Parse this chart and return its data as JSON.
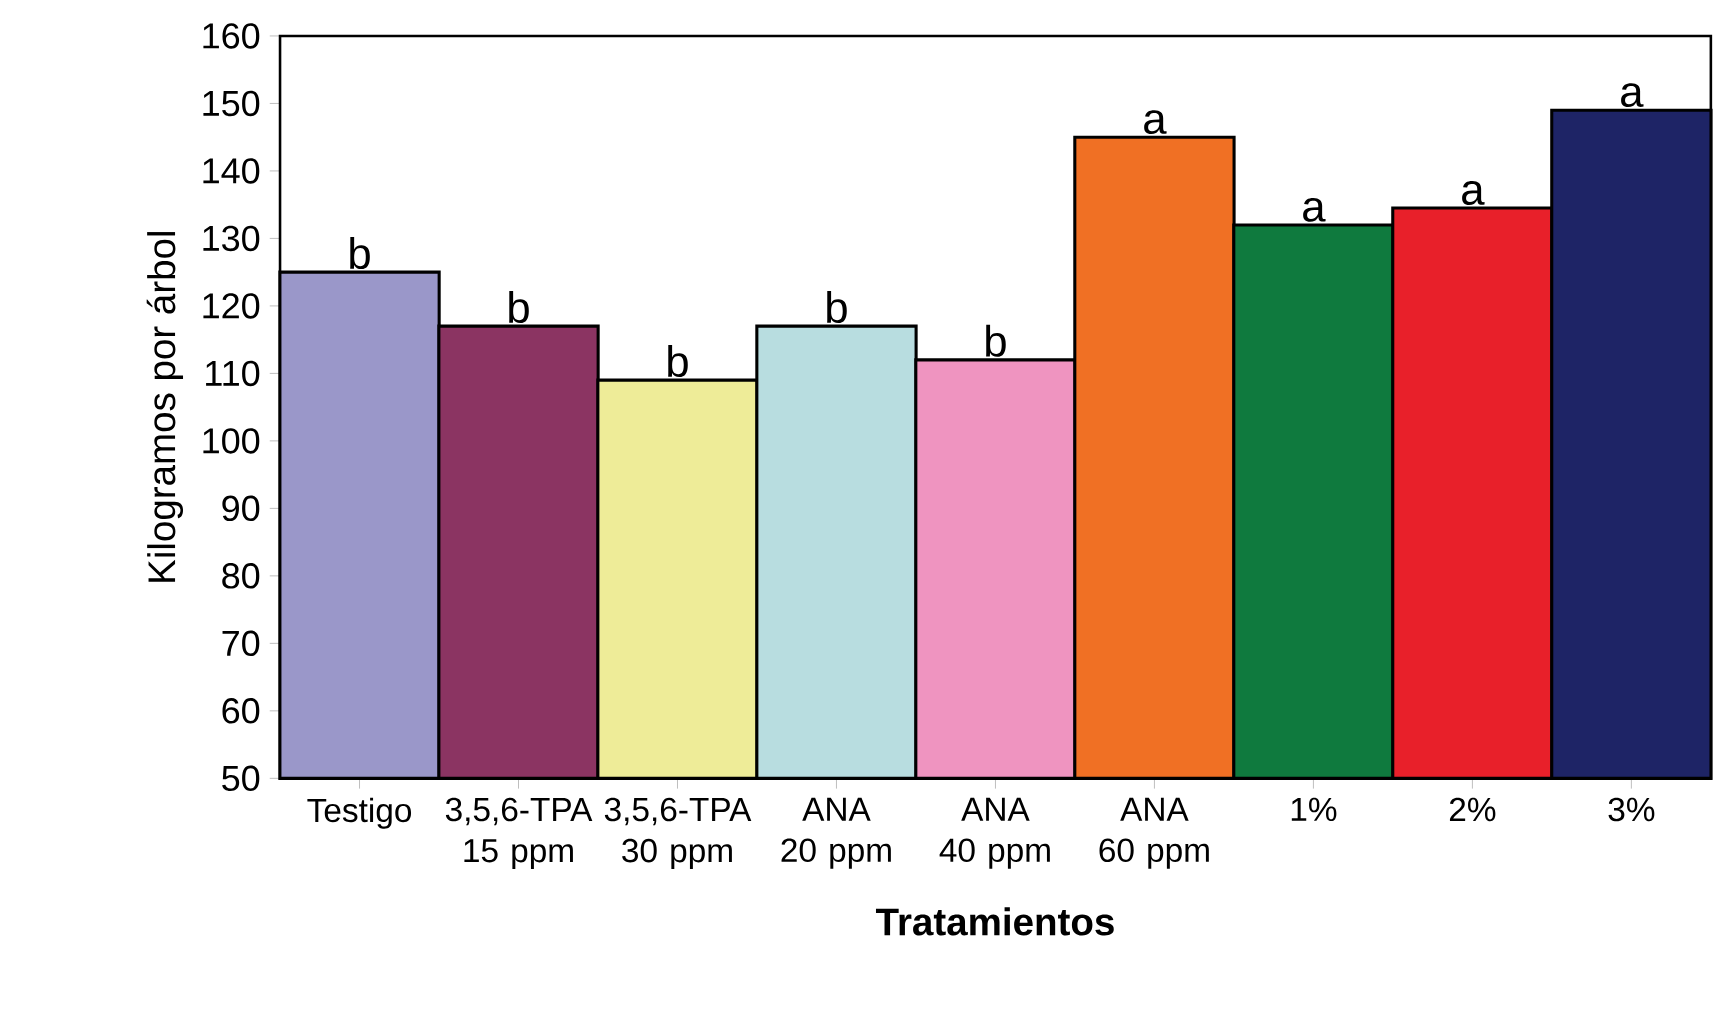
{
  "chart_data": {
    "type": "bar",
    "xlabel": "Tratamientos",
    "ylabel": "Kilogramos  por árbol",
    "categories": [
      "Testigo",
      "3,5,6-TPA 15 ppm",
      "3,5,6-TPA 30 ppm",
      "ANA  20 ppm",
      "ANA  40 ppm",
      "ANA 60 ppm",
      "1%",
      "2%",
      "3%"
    ],
    "values": [
      125,
      117,
      109,
      117,
      112,
      145,
      132,
      134.5,
      149
    ],
    "colors": [
      "#9a97c9",
      "#8b3462",
      "#eeec98",
      "#b8dde0",
      "#ef94c0",
      "#f07024",
      "#0f7a3e",
      "#e8202a",
      "#1e2466"
    ],
    "ylim": [
      50,
      160
    ],
    "yticks": [
      50,
      60,
      70,
      80,
      90,
      100,
      110,
      120,
      130,
      140,
      150,
      160
    ],
    "annotations": [
      {
        "text": "b",
        "x": "Testigo",
        "y": 125
      },
      {
        "text": "b",
        "x": "3,5,6-TPA 15 ppm",
        "y": 117
      },
      {
        "text": "b",
        "x": "3,5,6-TPA 30 ppm",
        "y": 109
      },
      {
        "text": "b",
        "x": "ANA  20 ppm",
        "y": 117
      },
      {
        "text": "b",
        "x": "ANA  40 ppm",
        "y": 112
      },
      {
        "text": "a",
        "x": "ANA 60 ppm",
        "y": 145
      },
      {
        "text": "a",
        "x": "1%",
        "y": 132
      },
      {
        "text": "a",
        "x": "2%",
        "y": 134.5
      },
      {
        "text": "a",
        "x": "3%",
        "y": 149
      }
    ]
  }
}
